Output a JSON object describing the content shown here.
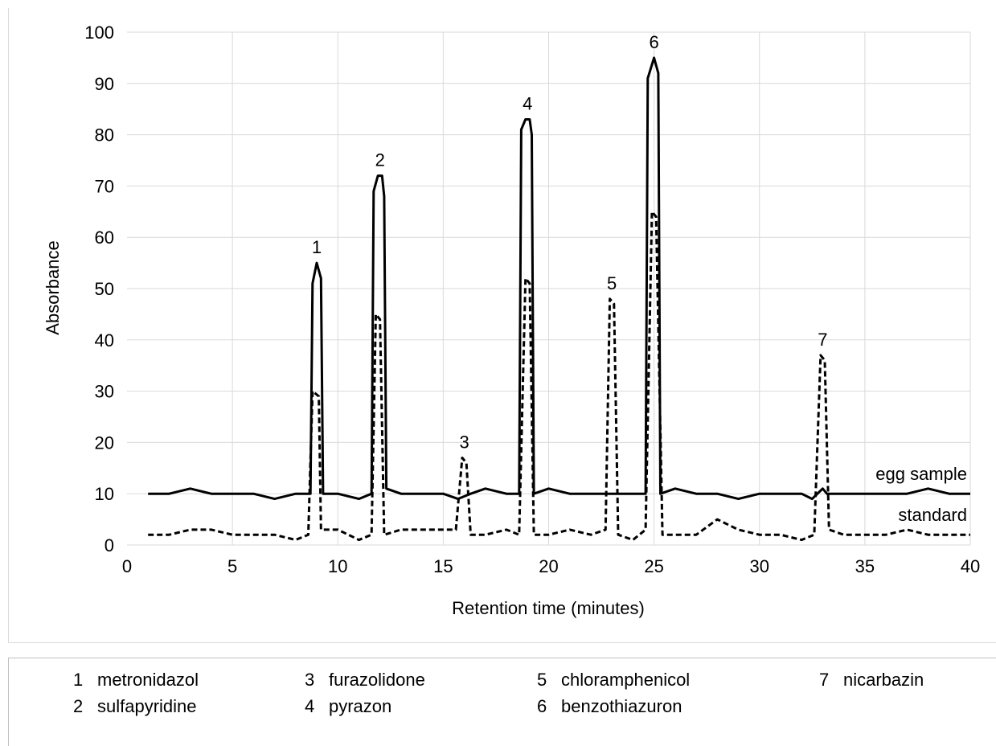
{
  "chart_data": {
    "type": "line",
    "title": "",
    "xlabel": "Retention time (minutes)",
    "ylabel": "Absorbance",
    "xlim": [
      0,
      40
    ],
    "ylim": [
      0,
      100
    ],
    "xticks": [
      0,
      5,
      10,
      15,
      20,
      25,
      30,
      35,
      40
    ],
    "yticks": [
      0,
      10,
      20,
      30,
      40,
      50,
      60,
      70,
      80,
      90,
      100
    ],
    "grid": true,
    "series": [
      {
        "name": "egg sample",
        "style": "solid",
        "color": "#000000",
        "points": [
          [
            1,
            10
          ],
          [
            2,
            10
          ],
          [
            3,
            11
          ],
          [
            4,
            10
          ],
          [
            5,
            10
          ],
          [
            6,
            10
          ],
          [
            7,
            9
          ],
          [
            8,
            10
          ],
          [
            8.7,
            10
          ],
          [
            8.8,
            51
          ],
          [
            9,
            55
          ],
          [
            9.2,
            52
          ],
          [
            9.3,
            10
          ],
          [
            10,
            10
          ],
          [
            11,
            9
          ],
          [
            11.6,
            10
          ],
          [
            11.7,
            69
          ],
          [
            11.9,
            72
          ],
          [
            12.1,
            72
          ],
          [
            12.2,
            68
          ],
          [
            12.3,
            11
          ],
          [
            13,
            10
          ],
          [
            14,
            10
          ],
          [
            15,
            10
          ],
          [
            15.7,
            9
          ],
          [
            16.3,
            10
          ],
          [
            17,
            11
          ],
          [
            18,
            10
          ],
          [
            18.6,
            10
          ],
          [
            18.7,
            81
          ],
          [
            18.9,
            83
          ],
          [
            19.1,
            83
          ],
          [
            19.2,
            80
          ],
          [
            19.3,
            10
          ],
          [
            20,
            11
          ],
          [
            21,
            10
          ],
          [
            22,
            10
          ],
          [
            23,
            10
          ],
          [
            24,
            10
          ],
          [
            24.6,
            10
          ],
          [
            24.7,
            91
          ],
          [
            25,
            95
          ],
          [
            25.2,
            92
          ],
          [
            25.3,
            10
          ],
          [
            26,
            11
          ],
          [
            27,
            10
          ],
          [
            28,
            10
          ],
          [
            29,
            9
          ],
          [
            30,
            10
          ],
          [
            31,
            10
          ],
          [
            32,
            10
          ],
          [
            32.5,
            9
          ],
          [
            33,
            11
          ],
          [
            33.2,
            10
          ],
          [
            34,
            10
          ],
          [
            35,
            10
          ],
          [
            36,
            10
          ],
          [
            37,
            10
          ],
          [
            38,
            11
          ],
          [
            39,
            10
          ],
          [
            40,
            10
          ]
        ]
      },
      {
        "name": "standard",
        "style": "dashed",
        "color": "#000000",
        "points": [
          [
            1,
            2
          ],
          [
            2,
            2
          ],
          [
            3,
            3
          ],
          [
            4,
            3
          ],
          [
            5,
            2
          ],
          [
            6,
            2
          ],
          [
            7,
            2
          ],
          [
            8,
            1
          ],
          [
            8.6,
            2
          ],
          [
            8.8,
            30
          ],
          [
            9.1,
            29
          ],
          [
            9.2,
            3
          ],
          [
            10,
            3
          ],
          [
            11,
            1
          ],
          [
            11.6,
            2
          ],
          [
            11.8,
            45
          ],
          [
            12,
            44
          ],
          [
            12.2,
            2
          ],
          [
            13,
            3
          ],
          [
            14,
            3
          ],
          [
            15,
            3
          ],
          [
            15.6,
            3
          ],
          [
            15.9,
            17
          ],
          [
            16.1,
            16
          ],
          [
            16.3,
            2
          ],
          [
            17,
            2
          ],
          [
            18,
            3
          ],
          [
            18.6,
            2
          ],
          [
            18.9,
            52
          ],
          [
            19.1,
            51
          ],
          [
            19.3,
            2
          ],
          [
            20,
            2
          ],
          [
            21,
            3
          ],
          [
            22,
            2
          ],
          [
            22.7,
            3
          ],
          [
            22.9,
            48
          ],
          [
            23.1,
            47
          ],
          [
            23.3,
            2
          ],
          [
            24,
            1
          ],
          [
            24.6,
            3
          ],
          [
            24.9,
            65
          ],
          [
            25.1,
            64
          ],
          [
            25.4,
            2
          ],
          [
            26,
            2
          ],
          [
            27,
            2
          ],
          [
            28,
            5
          ],
          [
            29,
            3
          ],
          [
            30,
            2
          ],
          [
            31,
            2
          ],
          [
            32,
            1
          ],
          [
            32.6,
            2
          ],
          [
            32.9,
            37
          ],
          [
            33.1,
            36
          ],
          [
            33.3,
            3
          ],
          [
            34,
            2
          ],
          [
            35,
            2
          ],
          [
            36,
            2
          ],
          [
            37,
            3
          ],
          [
            38,
            2
          ],
          [
            39,
            2
          ],
          [
            40,
            2
          ]
        ]
      }
    ],
    "peak_labels": [
      {
        "label": "1",
        "x": 9,
        "y": 55
      },
      {
        "label": "2",
        "x": 12,
        "y": 72
      },
      {
        "label": "3",
        "x": 16,
        "y": 17
      },
      {
        "label": "4",
        "x": 19,
        "y": 83
      },
      {
        "label": "5",
        "x": 23,
        "y": 48
      },
      {
        "label": "6",
        "x": 25,
        "y": 95
      },
      {
        "label": "7",
        "x": 33,
        "y": 37
      }
    ],
    "series_labels": [
      {
        "text": "egg sample",
        "x": 40,
        "y": 10
      },
      {
        "text": "standard",
        "x": 40,
        "y": 2
      }
    ]
  },
  "legend": {
    "entries": [
      {
        "num": "1",
        "name": "metronidazol"
      },
      {
        "num": "2",
        "name": "sulfapyridine"
      },
      {
        "num": "3",
        "name": "furazolidone"
      },
      {
        "num": "4",
        "name": "pyrazon"
      },
      {
        "num": "5",
        "name": "chloramphenicol"
      },
      {
        "num": "6",
        "name": "benzothiazuron"
      },
      {
        "num": "7",
        "name": "nicarbazin"
      }
    ]
  }
}
